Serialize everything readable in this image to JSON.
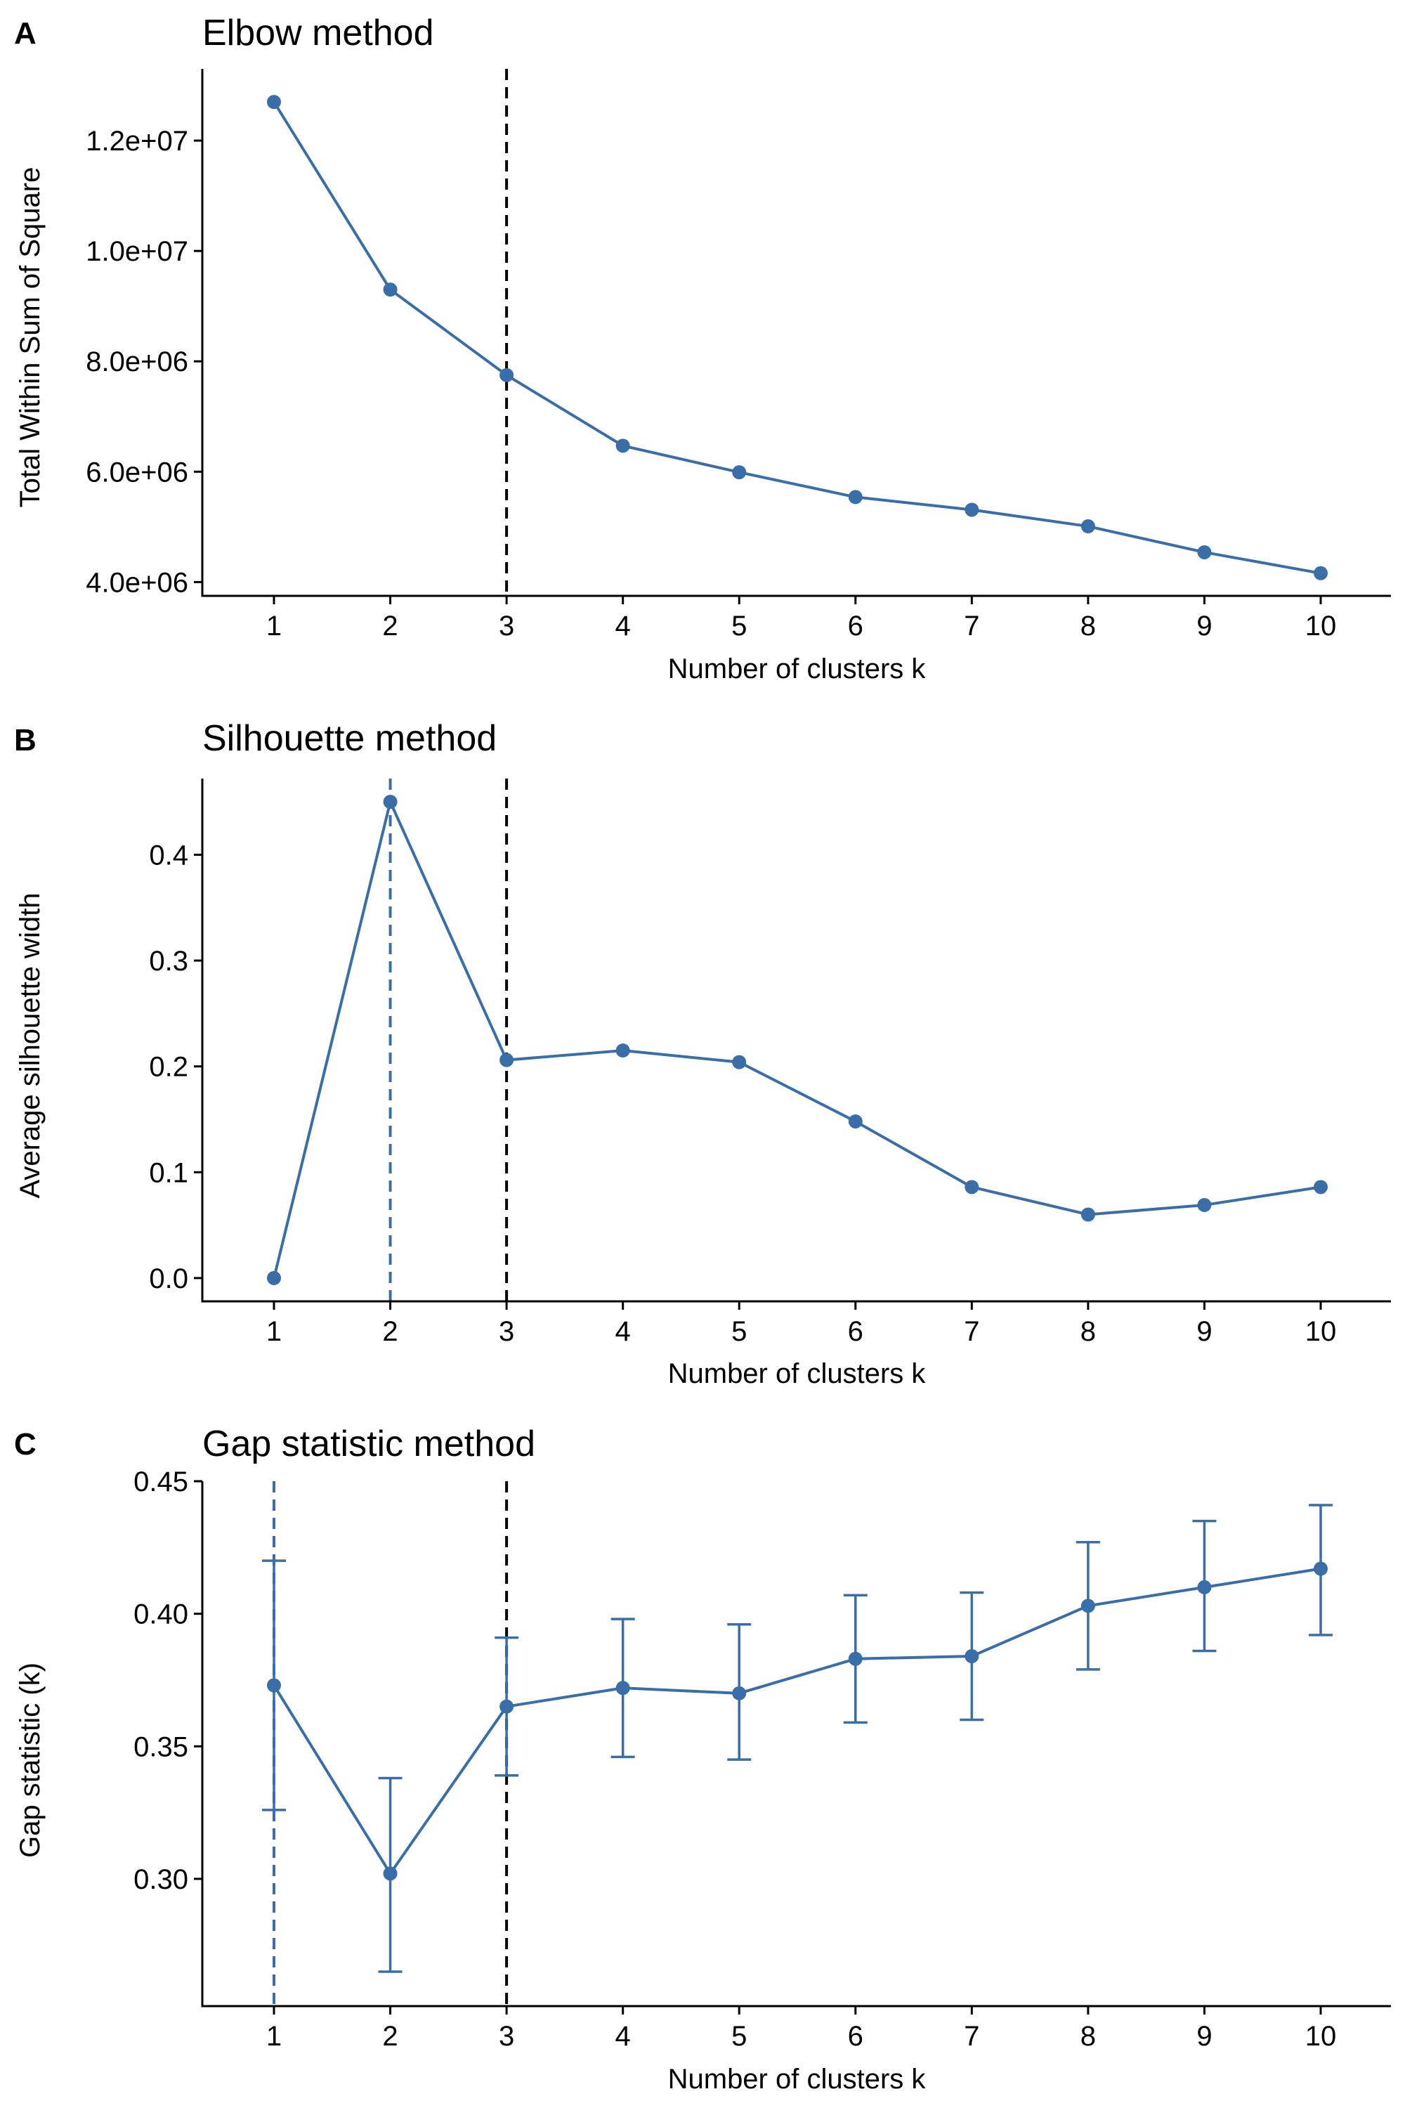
{
  "colors": {
    "series": "#3A6EA8",
    "vline_optimal": "#3A6EA8",
    "vline_reference": "#000000",
    "axis": "#000000"
  },
  "chart_data": [
    {
      "panel_letter": "A",
      "type": "line",
      "title": "Elbow method",
      "xlabel": "Number of clusters k",
      "ylabel": "Total Within Sum of Square",
      "x": [
        1,
        2,
        3,
        4,
        5,
        6,
        7,
        8,
        9,
        10
      ],
      "x_tick_labels": [
        "1",
        "2",
        "3",
        "4",
        "5",
        "6",
        "7",
        "8",
        "9",
        "10"
      ],
      "values": [
        12700000,
        9300000,
        7750000,
        6470000,
        5990000,
        5540000,
        5310000,
        5010000,
        4540000,
        4160000
      ],
      "ylim": [
        3750000,
        13300000
      ],
      "y_ticks": [
        4000000,
        6000000,
        8000000,
        10000000,
        12000000
      ],
      "y_tick_labels": [
        "4.0e+06",
        "6.0e+06",
        "8.0e+06",
        "1.0e+07",
        "1.2e+07"
      ],
      "vlines": [
        {
          "x": 3,
          "style": "reference"
        }
      ],
      "grid": false,
      "legend": "none"
    },
    {
      "panel_letter": "B",
      "type": "line",
      "title": "Silhouette method",
      "xlabel": "Number of clusters k",
      "ylabel": "Average silhouette width",
      "x": [
        1,
        2,
        3,
        4,
        5,
        6,
        7,
        8,
        9,
        10
      ],
      "x_tick_labels": [
        "1",
        "2",
        "3",
        "4",
        "5",
        "6",
        "7",
        "8",
        "9",
        "10"
      ],
      "values": [
        0.0,
        0.45,
        0.206,
        0.215,
        0.204,
        0.148,
        0.086,
        0.06,
        0.069,
        0.086
      ],
      "ylim": [
        -0.022,
        0.472
      ],
      "y_ticks": [
        0.0,
        0.1,
        0.2,
        0.3,
        0.4
      ],
      "y_tick_labels": [
        "0.0",
        "0.1",
        "0.2",
        "0.3",
        "0.4"
      ],
      "vlines": [
        {
          "x": 2,
          "style": "optimal"
        },
        {
          "x": 3,
          "style": "reference"
        }
      ],
      "grid": false,
      "legend": "none"
    },
    {
      "panel_letter": "C",
      "type": "line",
      "title": "Gap statistic method",
      "xlabel": "Number of clusters k",
      "ylabel": "Gap statistic (k)",
      "x": [
        1,
        2,
        3,
        4,
        5,
        6,
        7,
        8,
        9,
        10
      ],
      "x_tick_labels": [
        "1",
        "2",
        "3",
        "4",
        "5",
        "6",
        "7",
        "8",
        "9",
        "10"
      ],
      "values": [
        0.373,
        0.302,
        0.365,
        0.372,
        0.37,
        0.383,
        0.384,
        0.403,
        0.41,
        0.417
      ],
      "error_low": [
        0.326,
        0.265,
        0.339,
        0.346,
        0.345,
        0.359,
        0.36,
        0.379,
        0.386,
        0.392
      ],
      "error_high": [
        0.42,
        0.338,
        0.391,
        0.398,
        0.396,
        0.407,
        0.408,
        0.427,
        0.435,
        0.441
      ],
      "ylim": [
        0.252,
        0.45
      ],
      "y_ticks": [
        0.3,
        0.35,
        0.4,
        0.45
      ],
      "y_tick_labels": [
        "0.30",
        "0.35",
        "0.40",
        "0.45"
      ],
      "vlines": [
        {
          "x": 1,
          "style": "optimal"
        },
        {
          "x": 3,
          "style": "reference"
        }
      ],
      "grid": false,
      "legend": "none"
    }
  ]
}
